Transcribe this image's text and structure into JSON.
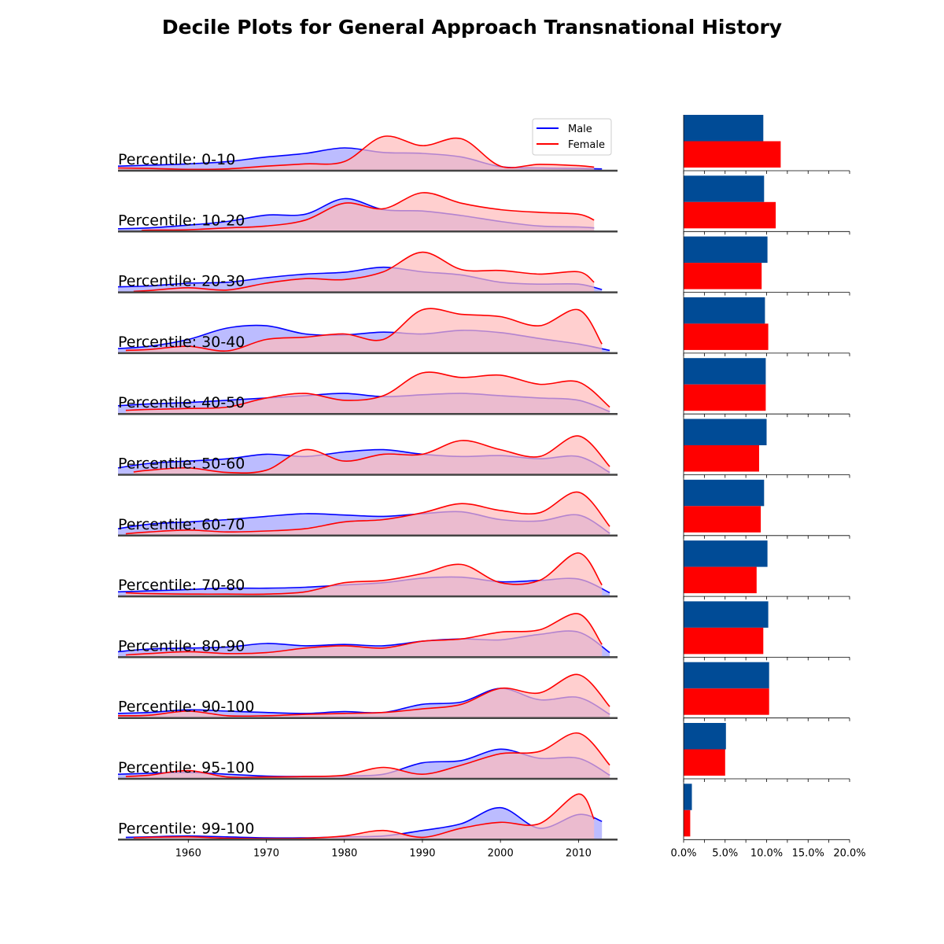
{
  "chart_data": {
    "type": "area",
    "title": "Decile Plots for General Approach Transnational History",
    "colors": {
      "male_line": "#0000ff",
      "male_fill": "#b0b0ff",
      "female_line": "#ff0000",
      "female_fill": "#ffbaba",
      "male_bar": "#004b96",
      "female_bar": "#ff0000",
      "baseline": "#444444"
    },
    "legend": {
      "placement": "top-right of first row",
      "entries": [
        "Male",
        "Female"
      ]
    },
    "x_axis": {
      "range": [
        1951,
        2015
      ],
      "ticks": [
        "1960",
        "1970",
        "1980",
        "1990",
        "2000",
        "2010"
      ]
    },
    "bar_axis": {
      "range": [
        0,
        20
      ],
      "ticks": [
        "0.0%",
        "5.0%",
        "10.0%",
        "15.0%",
        "20.0%"
      ]
    },
    "series": [
      {
        "name": "Male",
        "x": [
          1951,
          1955,
          1960,
          1965,
          1970,
          1975,
          1980,
          1985,
          1990,
          1995,
          2000,
          2005,
          2010,
          2015
        ],
        "rows_note": "density curves per decile row, relative height 0-1"
      }
    ],
    "rows": [
      {
        "label": "Percentile: 0-10",
        "male_start": 1951,
        "male_end": 2013,
        "female_start": 1951,
        "female_end": 2012,
        "male": [
          0.1,
          0.12,
          0.15,
          0.2,
          0.3,
          0.38,
          0.5,
          0.4,
          0.38,
          0.3,
          0.09,
          0.06,
          0.05,
          0.04
        ],
        "female": [
          0.06,
          0.05,
          0.03,
          0.04,
          0.1,
          0.15,
          0.2,
          0.75,
          0.55,
          0.7,
          0.1,
          0.14,
          0.11,
          0.08
        ],
        "bar_male": 9.6,
        "bar_female": 11.7
      },
      {
        "label": "Percentile: 10-20",
        "male_start": 1951,
        "male_end": 2012,
        "female_start": 1954,
        "female_end": 2012,
        "male": [
          0.06,
          0.08,
          0.14,
          0.22,
          0.36,
          0.38,
          0.72,
          0.48,
          0.45,
          0.35,
          0.22,
          0.12,
          0.1,
          0.08
        ],
        "female": [
          0.02,
          0.03,
          0.04,
          0.08,
          0.12,
          0.25,
          0.62,
          0.5,
          0.85,
          0.62,
          0.48,
          0.42,
          0.38,
          0.25
        ],
        "bar_male": 9.7,
        "bar_female": 11.1
      },
      {
        "label": "Percentile: 20-30",
        "male_start": 1951,
        "male_end": 2013,
        "female_start": 1953,
        "female_end": 2012,
        "male": [
          0.12,
          0.14,
          0.2,
          0.22,
          0.32,
          0.4,
          0.44,
          0.55,
          0.45,
          0.38,
          0.22,
          0.18,
          0.18,
          0.06
        ],
        "female": [
          0.02,
          0.04,
          0.1,
          0.05,
          0.2,
          0.3,
          0.28,
          0.45,
          0.88,
          0.5,
          0.48,
          0.4,
          0.45,
          0.22
        ],
        "bar_male": 10.1,
        "bar_female": 9.4
      },
      {
        "label": "Percentile: 30-40",
        "male_start": 1951,
        "male_end": 2014,
        "female_start": 1952,
        "female_end": 2013,
        "male": [
          0.1,
          0.15,
          0.3,
          0.55,
          0.6,
          0.42,
          0.4,
          0.46,
          0.42,
          0.5,
          0.45,
          0.32,
          0.2,
          0.06
        ],
        "female": [
          0.06,
          0.08,
          0.15,
          0.05,
          0.3,
          0.35,
          0.42,
          0.3,
          0.95,
          0.85,
          0.8,
          0.6,
          0.95,
          0.2
        ],
        "bar_male": 9.8,
        "bar_female": 10.2
      },
      {
        "label": "Percentile: 40-50",
        "male_start": 1951,
        "male_end": 2014,
        "female_start": 1952,
        "female_end": 2014,
        "male": [
          0.18,
          0.22,
          0.25,
          0.3,
          0.35,
          0.4,
          0.45,
          0.38,
          0.42,
          0.45,
          0.4,
          0.35,
          0.3,
          0.05
        ],
        "female": [
          0.08,
          0.1,
          0.12,
          0.15,
          0.35,
          0.45,
          0.3,
          0.4,
          0.9,
          0.8,
          0.85,
          0.65,
          0.7,
          0.15
        ],
        "bar_male": 9.9,
        "bar_female": 9.9
      },
      {
        "label": "Percentile: 50-60",
        "male_start": 1951,
        "male_end": 2014,
        "female_start": 1953,
        "female_end": 2014,
        "male": [
          0.15,
          0.25,
          0.3,
          0.35,
          0.45,
          0.4,
          0.5,
          0.55,
          0.45,
          0.4,
          0.42,
          0.35,
          0.4,
          0.05
        ],
        "female": [
          0.06,
          0.1,
          0.15,
          0.05,
          0.1,
          0.55,
          0.3,
          0.45,
          0.45,
          0.75,
          0.55,
          0.4,
          0.85,
          0.18
        ],
        "bar_male": 10.0,
        "bar_female": 9.1
      },
      {
        "label": "Percentile: 60-70",
        "male_start": 1951,
        "male_end": 2014,
        "female_start": 1952,
        "female_end": 2014,
        "male": [
          0.15,
          0.25,
          0.3,
          0.35,
          0.42,
          0.48,
          0.45,
          0.42,
          0.48,
          0.52,
          0.35,
          0.32,
          0.45,
          0.05
        ],
        "female": [
          0.04,
          0.08,
          0.12,
          0.08,
          0.1,
          0.15,
          0.3,
          0.35,
          0.5,
          0.7,
          0.55,
          0.5,
          0.95,
          0.2
        ],
        "bar_male": 9.7,
        "bar_female": 9.3
      },
      {
        "label": "Percentile: 70-80",
        "male_start": 1951,
        "male_end": 2014,
        "female_start": 1952,
        "female_end": 2013,
        "male": [
          0.1,
          0.12,
          0.15,
          0.18,
          0.18,
          0.2,
          0.25,
          0.3,
          0.4,
          0.42,
          0.32,
          0.35,
          0.38,
          0.08
        ],
        "female": [
          0.08,
          0.06,
          0.05,
          0.05,
          0.05,
          0.1,
          0.3,
          0.35,
          0.5,
          0.7,
          0.3,
          0.35,
          0.95,
          0.25
        ],
        "bar_male": 10.1,
        "bar_female": 8.8
      },
      {
        "label": "Percentile: 80-90",
        "male_start": 1951,
        "male_end": 2014,
        "female_start": 1952,
        "female_end": 2013,
        "male": [
          0.12,
          0.18,
          0.2,
          0.22,
          0.3,
          0.25,
          0.28,
          0.25,
          0.35,
          0.4,
          0.38,
          0.5,
          0.55,
          0.1
        ],
        "female": [
          0.05,
          0.08,
          0.12,
          0.08,
          0.1,
          0.2,
          0.25,
          0.2,
          0.35,
          0.4,
          0.55,
          0.6,
          0.95,
          0.28
        ],
        "bar_male": 10.2,
        "bar_female": 9.6
      },
      {
        "label": "Percentile: 90-100",
        "male_start": 1951,
        "male_end": 2014,
        "female_start": 1951,
        "female_end": 2014,
        "male": [
          0.1,
          0.12,
          0.18,
          0.15,
          0.12,
          0.1,
          0.14,
          0.12,
          0.3,
          0.35,
          0.65,
          0.4,
          0.45,
          0.08
        ],
        "female": [
          0.05,
          0.06,
          0.15,
          0.05,
          0.05,
          0.08,
          0.1,
          0.12,
          0.2,
          0.3,
          0.65,
          0.55,
          0.95,
          0.25
        ],
        "bar_male": 10.3,
        "bar_female": 10.3
      },
      {
        "label": "Percentile: 95-100",
        "male_start": 1951,
        "male_end": 2014,
        "female_start": 1952,
        "female_end": 2014,
        "male": [
          0.1,
          0.12,
          0.14,
          0.1,
          0.06,
          0.05,
          0.06,
          0.1,
          0.35,
          0.4,
          0.65,
          0.45,
          0.45,
          0.08
        ],
        "female": [
          0.05,
          0.08,
          0.18,
          0.04,
          0.04,
          0.05,
          0.08,
          0.25,
          0.1,
          0.3,
          0.55,
          0.6,
          1.0,
          0.3
        ],
        "bar_male": 5.1,
        "bar_female": 5.0
      },
      {
        "label": "Percentile: 99-100",
        "male_start": 1952,
        "male_end": 2013,
        "female_start": 1953,
        "female_end": 2012,
        "male": [
          0.05,
          0.06,
          0.08,
          0.06,
          0.04,
          0.04,
          0.06,
          0.08,
          0.2,
          0.35,
          0.7,
          0.25,
          0.55,
          0.4
        ],
        "female": [
          0.04,
          0.05,
          0.06,
          0.03,
          0.02,
          0.03,
          0.08,
          0.2,
          0.05,
          0.25,
          0.38,
          0.35,
          1.0,
          0.45
        ],
        "bar_male": 1.0,
        "bar_female": 0.8
      }
    ]
  }
}
